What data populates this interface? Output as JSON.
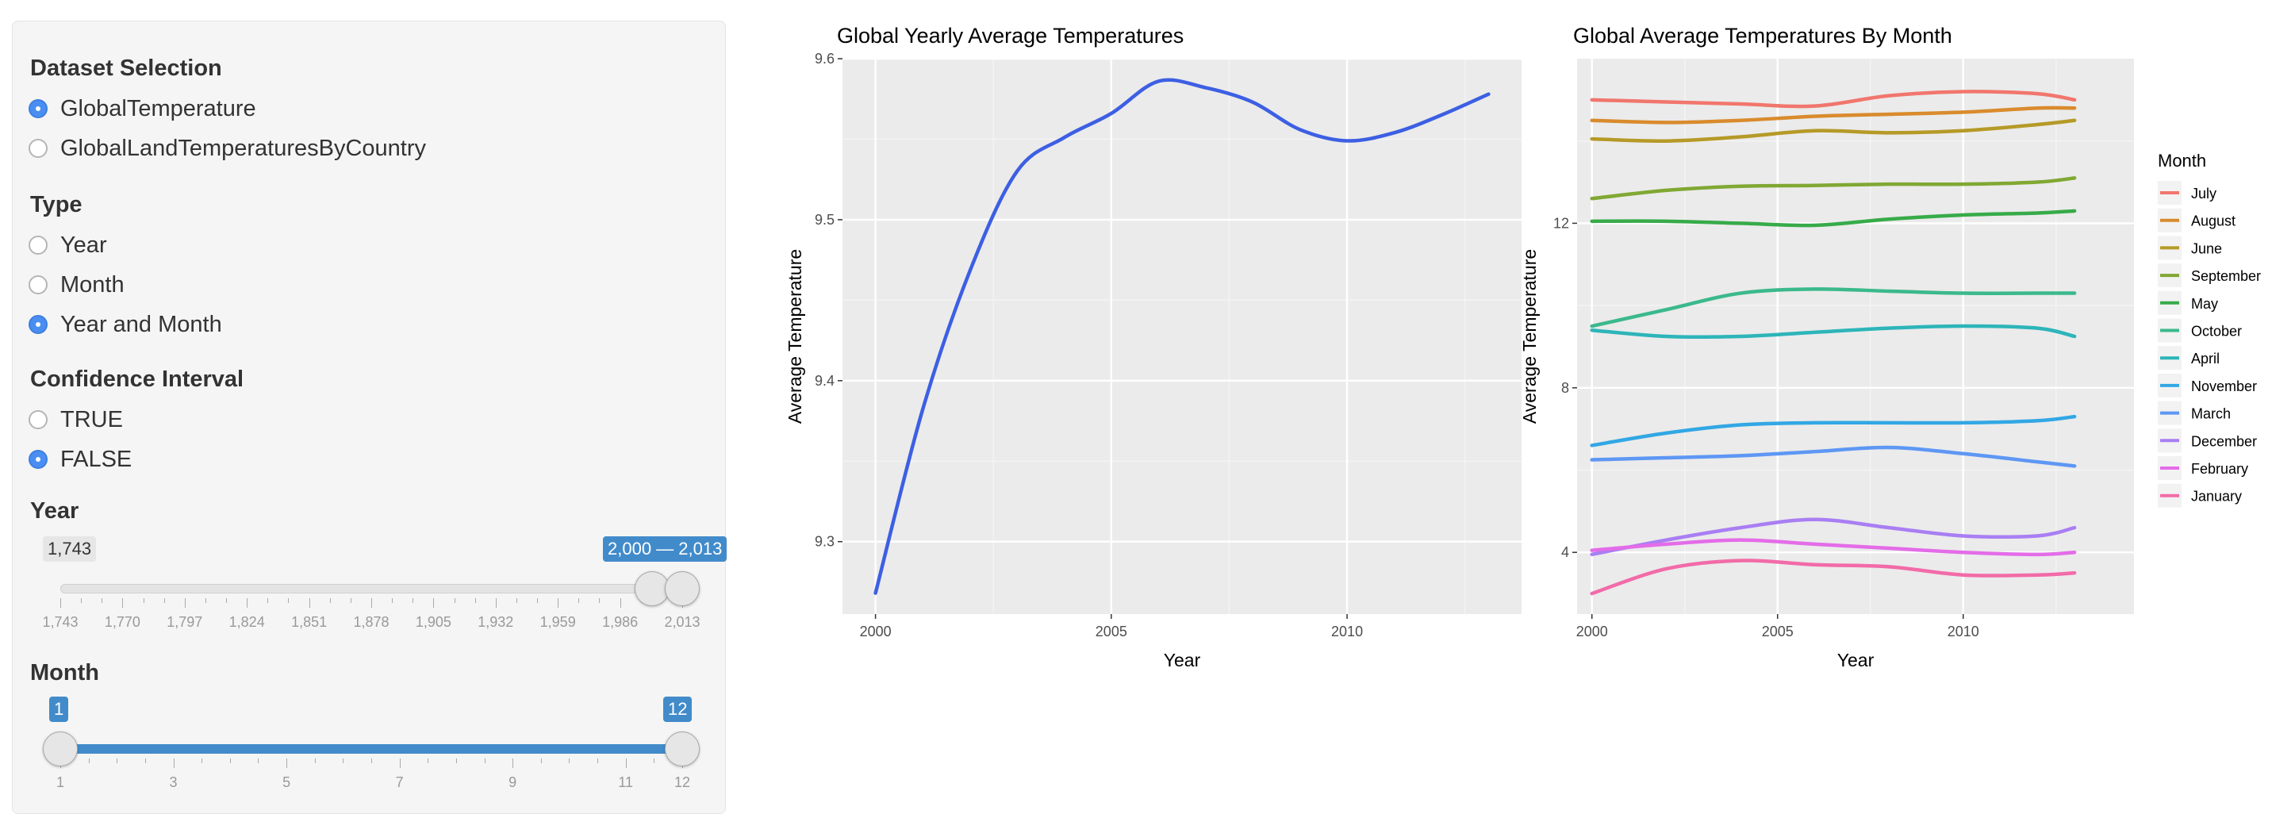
{
  "sidebar": {
    "dataset": {
      "title": "Dataset Selection",
      "options": [
        {
          "label": "GlobalTemperature",
          "checked": true
        },
        {
          "label": "GlobalLandTemperaturesByCountry",
          "checked": false
        }
      ]
    },
    "type": {
      "title": "Type",
      "options": [
        {
          "label": "Year",
          "checked": false
        },
        {
          "label": "Month",
          "checked": false
        },
        {
          "label": "Year and Month",
          "checked": true
        }
      ]
    },
    "confidence": {
      "title": "Confidence Interval",
      "options": [
        {
          "label": "TRUE",
          "checked": false
        },
        {
          "label": "FALSE",
          "checked": true
        }
      ]
    },
    "year_slider": {
      "title": "Year",
      "min_label": "1,743",
      "range_label": "2,000 — 2,013",
      "min": 1743,
      "max": 2013,
      "from": 2000,
      "to": 2013,
      "tick_labels": [
        "1,743",
        "1,770",
        "1,797",
        "1,824",
        "1,851",
        "1,878",
        "1,905",
        "1,932",
        "1,959",
        "1,986",
        "2,013"
      ]
    },
    "month_slider": {
      "title": "Month",
      "from_label": "1",
      "to_label": "12",
      "min": 1,
      "max": 12,
      "from": 1,
      "to": 12,
      "tick_labels": [
        "1",
        "3",
        "5",
        "7",
        "9",
        "11",
        "12"
      ]
    }
  },
  "chart_data": [
    {
      "type": "line",
      "title": "Global Yearly Average Temperatures",
      "xlabel": "Year",
      "ylabel": "Average Temperature",
      "xlim": [
        1999.3,
        2013.7
      ],
      "ylim": [
        9.255,
        9.6
      ],
      "xticks": [
        2000,
        2005,
        2010
      ],
      "yticks": [
        9.3,
        9.4,
        9.5,
        9.6
      ],
      "grid": true,
      "series": [
        {
          "color": "#3d5fe3",
          "x": [
            2000,
            2001,
            2002,
            2003,
            2004,
            2005,
            2006,
            2007,
            2008,
            2009,
            2010,
            2011,
            2012,
            2013
          ],
          "y": [
            9.268,
            9.382,
            9.468,
            9.53,
            9.551,
            9.566,
            9.586,
            9.582,
            9.573,
            9.556,
            9.549,
            9.554,
            9.565,
            9.578
          ]
        }
      ]
    },
    {
      "type": "line",
      "title": "Global Average Temperatures By Month",
      "xlabel": "Year",
      "ylabel": "Average Temperature",
      "xlim": [
        1999.6,
        2014.6
      ],
      "ylim": [
        2.5,
        16.0
      ],
      "xticks": [
        2000,
        2005,
        2010
      ],
      "yticks": [
        4,
        8,
        12
      ],
      "grid": true,
      "legend": {
        "title": "Month",
        "position": "right"
      },
      "series": [
        {
          "name": "July",
          "color": "#f1766d",
          "x": [
            2000,
            2002,
            2004,
            2006,
            2008,
            2010,
            2012,
            2013
          ],
          "y": [
            15.0,
            14.95,
            14.9,
            14.85,
            15.1,
            15.2,
            15.15,
            15.0
          ]
        },
        {
          "name": "August",
          "color": "#d98b2d",
          "x": [
            2000,
            2002,
            2004,
            2006,
            2008,
            2010,
            2012,
            2013
          ],
          "y": [
            14.5,
            14.45,
            14.5,
            14.6,
            14.65,
            14.7,
            14.8,
            14.8
          ]
        },
        {
          "name": "June",
          "color": "#b59a27",
          "x": [
            2000,
            2002,
            2004,
            2006,
            2008,
            2010,
            2012,
            2013
          ],
          "y": [
            14.05,
            14.0,
            14.1,
            14.25,
            14.2,
            14.25,
            14.4,
            14.5
          ]
        },
        {
          "name": "September",
          "color": "#80a833",
          "x": [
            2000,
            2002,
            2004,
            2006,
            2008,
            2010,
            2012,
            2013
          ],
          "y": [
            12.6,
            12.8,
            12.9,
            12.92,
            12.95,
            12.95,
            13.0,
            13.1
          ]
        },
        {
          "name": "May",
          "color": "#37ab49",
          "x": [
            2000,
            2002,
            2004,
            2006,
            2008,
            2010,
            2012,
            2013
          ],
          "y": [
            12.05,
            12.05,
            12.0,
            11.95,
            12.1,
            12.2,
            12.25,
            12.3
          ]
        },
        {
          "name": "October",
          "color": "#3bb98c",
          "x": [
            2000,
            2002,
            2004,
            2006,
            2008,
            2010,
            2012,
            2013
          ],
          "y": [
            9.5,
            9.9,
            10.3,
            10.4,
            10.35,
            10.3,
            10.3,
            10.3
          ]
        },
        {
          "name": "April",
          "color": "#2db5b9",
          "x": [
            2000,
            2002,
            2004,
            2006,
            2008,
            2010,
            2012,
            2013
          ],
          "y": [
            9.4,
            9.25,
            9.25,
            9.35,
            9.45,
            9.5,
            9.45,
            9.25
          ]
        },
        {
          "name": "November",
          "color": "#32a7e4",
          "x": [
            2000,
            2002,
            2004,
            2006,
            2008,
            2010,
            2012,
            2013
          ],
          "y": [
            6.6,
            6.9,
            7.1,
            7.15,
            7.15,
            7.15,
            7.2,
            7.3
          ]
        },
        {
          "name": "March",
          "color": "#5e97f4",
          "x": [
            2000,
            2002,
            2004,
            2006,
            2008,
            2010,
            2012,
            2013
          ],
          "y": [
            6.25,
            6.3,
            6.35,
            6.45,
            6.55,
            6.4,
            6.2,
            6.1
          ]
        },
        {
          "name": "December",
          "color": "#a97ef3",
          "x": [
            2000,
            2002,
            2004,
            2006,
            2008,
            2010,
            2012,
            2013
          ],
          "y": [
            3.95,
            4.3,
            4.6,
            4.8,
            4.6,
            4.4,
            4.4,
            4.6
          ]
        },
        {
          "name": "February",
          "color": "#e36ce8",
          "x": [
            2000,
            2002,
            2004,
            2006,
            2008,
            2010,
            2012,
            2013
          ],
          "y": [
            4.05,
            4.2,
            4.3,
            4.2,
            4.1,
            4.0,
            3.95,
            4.0
          ]
        },
        {
          "name": "January",
          "color": "#f26ba8",
          "x": [
            2000,
            2002,
            2004,
            2006,
            2008,
            2010,
            2012,
            2013
          ],
          "y": [
            3.0,
            3.6,
            3.8,
            3.7,
            3.65,
            3.45,
            3.45,
            3.5
          ]
        }
      ]
    }
  ]
}
